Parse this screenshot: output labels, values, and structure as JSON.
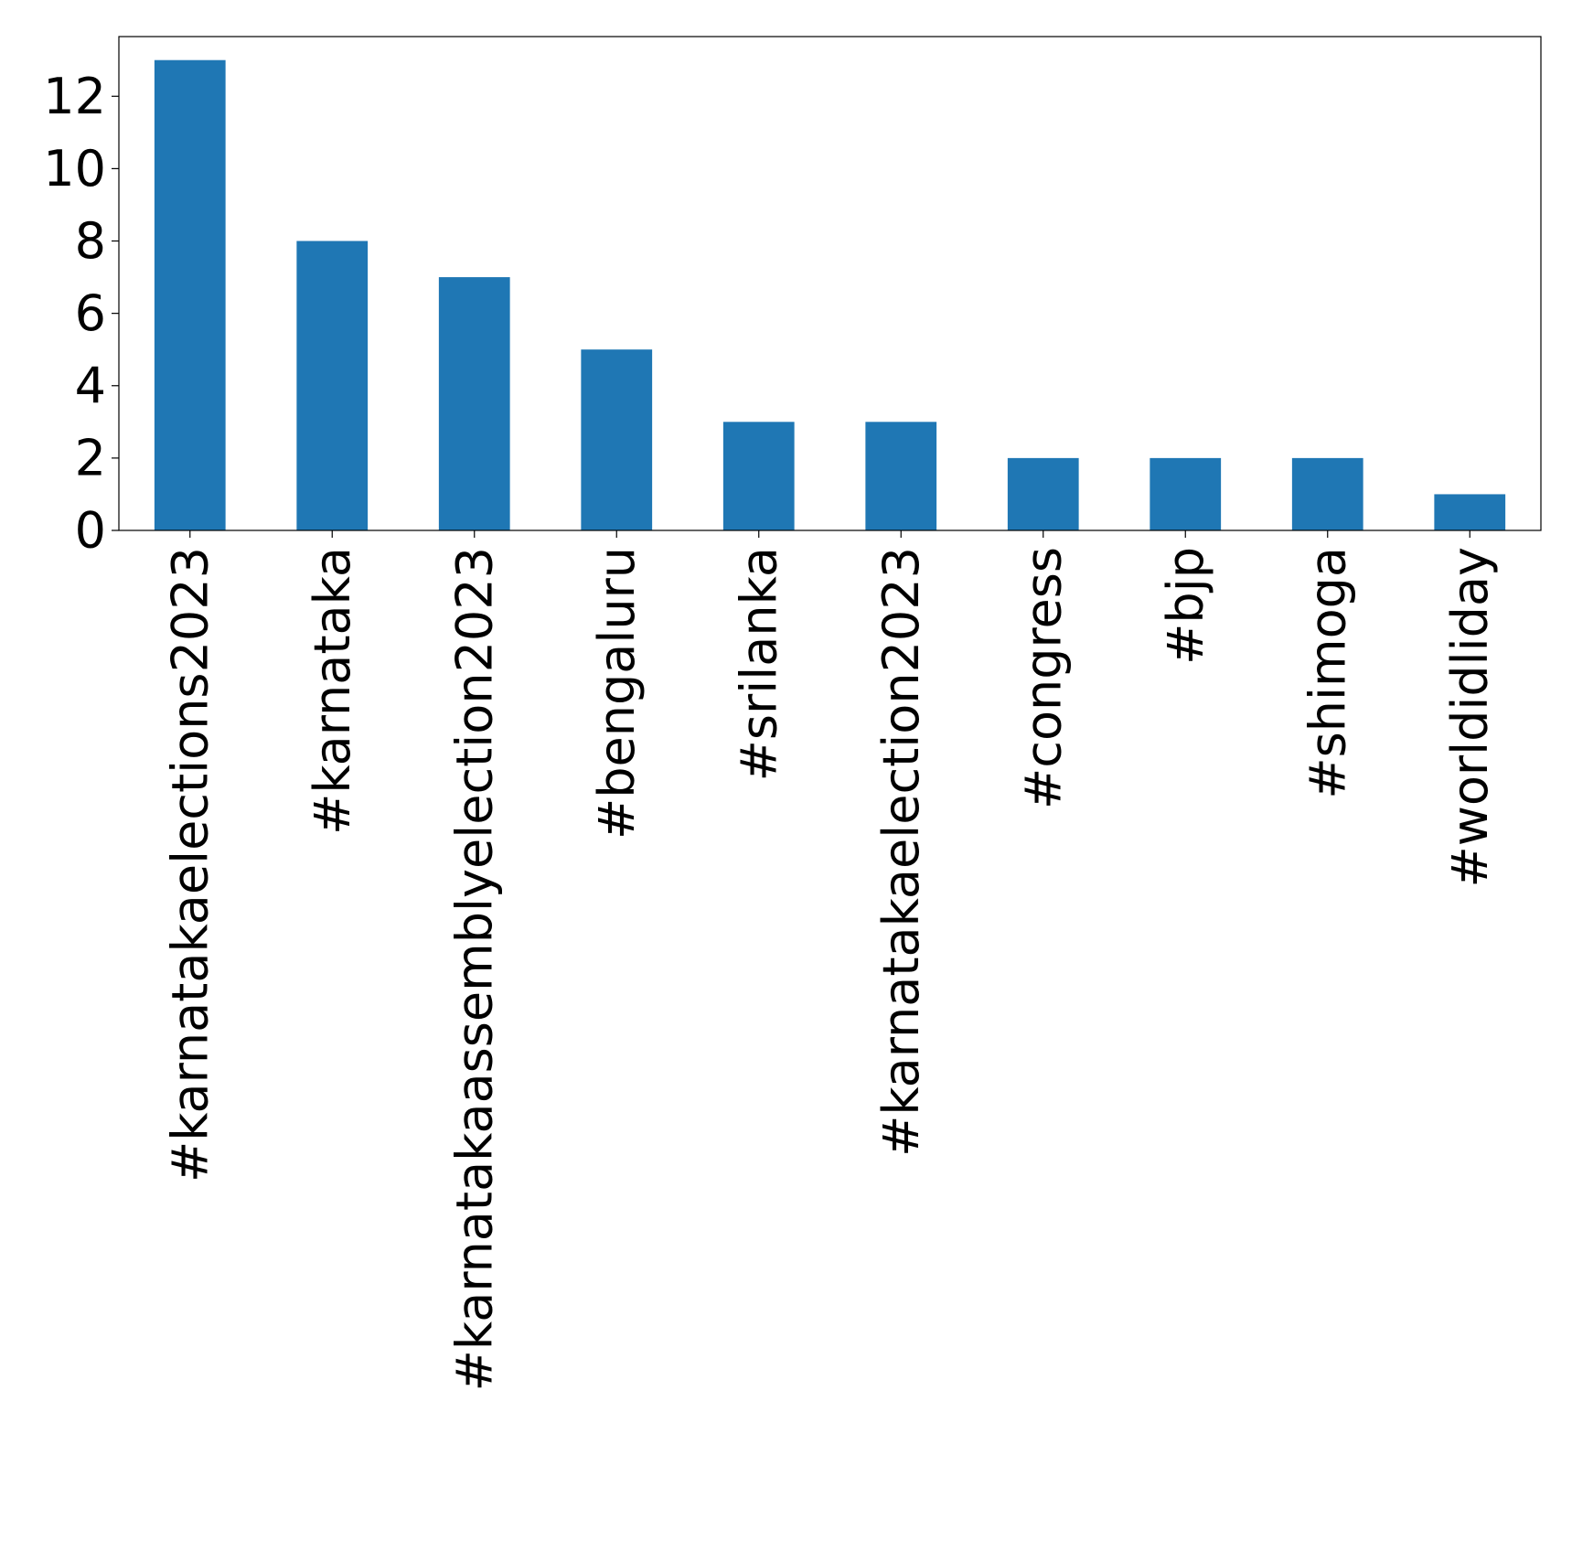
{
  "chart_data": {
    "type": "bar",
    "title": "",
    "xlabel": "",
    "ylabel": "",
    "categories": [
      "#karnatakaelections2023",
      "#karnataka",
      "#karnatakaassemblyelection2023",
      "#bengaluru",
      "#srilanka",
      "#karnatakaelection2023",
      "#congress",
      "#bjp",
      "#shimoga",
      "#worldidliday"
    ],
    "values": [
      13,
      8,
      7,
      5,
      3,
      3,
      2,
      2,
      2,
      1
    ],
    "ylim": [
      0,
      13.65
    ],
    "yticks": [
      0,
      2,
      4,
      6,
      8,
      10,
      12
    ],
    "grid": false,
    "bar_color": "#1f77b4"
  }
}
